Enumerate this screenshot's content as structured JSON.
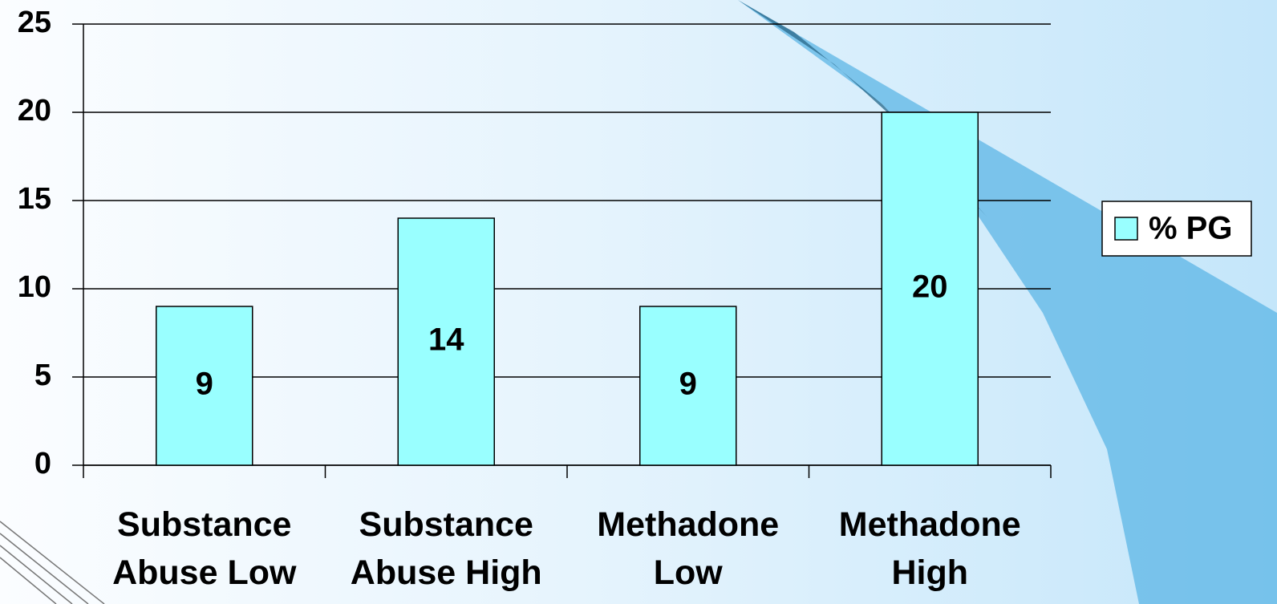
{
  "chart_data": {
    "type": "bar",
    "categories": [
      "Substance Abuse Low",
      "Substance Abuse High",
      "Methadone Low",
      "Methadone High"
    ],
    "series": [
      {
        "name": "% PG",
        "color": "#99ffff",
        "values": [
          9,
          14,
          9,
          20
        ]
      }
    ],
    "ylim": [
      0,
      25
    ],
    "yticks": [
      0,
      5,
      10,
      15,
      20,
      25
    ],
    "grid": true,
    "data_labels": true,
    "legend": "right"
  }
}
